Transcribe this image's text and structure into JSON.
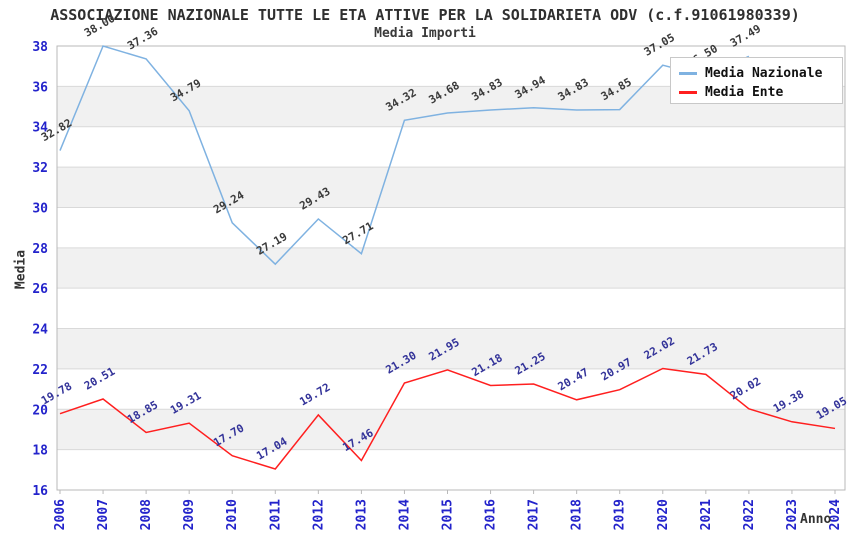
{
  "chart_data": {
    "type": "line",
    "title": "ASSOCIAZIONE NAZIONALE TUTTE LE ETA ATTIVE PER LA SOLIDARIETA ODV (c.f.91061980339)",
    "subtitle": "Media Importi",
    "xlabel": "Anno",
    "ylabel": "Media",
    "categories": [
      "2006",
      "2007",
      "2008",
      "2009",
      "2010",
      "2011",
      "2012",
      "2013",
      "2014",
      "2015",
      "2016",
      "2017",
      "2018",
      "2019",
      "2020",
      "2021",
      "2022",
      "2023",
      "2024"
    ],
    "ylim": [
      16,
      38
    ],
    "ytick_step": 2,
    "grid": "horizontal gridlines with alternating white/gray bands",
    "legend_position": "top-right",
    "series": [
      {
        "name": "Media Nazionale",
        "color": "#7fb2e1",
        "label_color": "#3a3a3a",
        "values": [
          32.82,
          38.0,
          37.36,
          34.79,
          29.24,
          27.19,
          29.43,
          27.71,
          34.32,
          34.68,
          34.83,
          34.94,
          34.83,
          34.85,
          37.05,
          36.5,
          37.49,
          null,
          null
        ]
      },
      {
        "name": "Media Ente",
        "color": "#ff1f1f",
        "label_color": "#333399",
        "values": [
          19.78,
          20.51,
          18.85,
          19.31,
          17.7,
          17.04,
          19.72,
          17.46,
          21.3,
          21.95,
          21.18,
          21.25,
          20.47,
          20.97,
          22.02,
          21.73,
          20.02,
          19.38,
          19.05
        ]
      }
    ]
  },
  "colors": {
    "background": "#ffffff",
    "band_alt": "#f1f1f1",
    "gridline": "#d9d9d9",
    "plot_border": "#b9b9b9",
    "axis_tick_label": "#2323cb",
    "title_text": "#2f2f2f",
    "media_nazionale_line": "#7fb2e1",
    "media_ente_line": "#ff1f1f",
    "legend_border": "#c8c8c8"
  }
}
